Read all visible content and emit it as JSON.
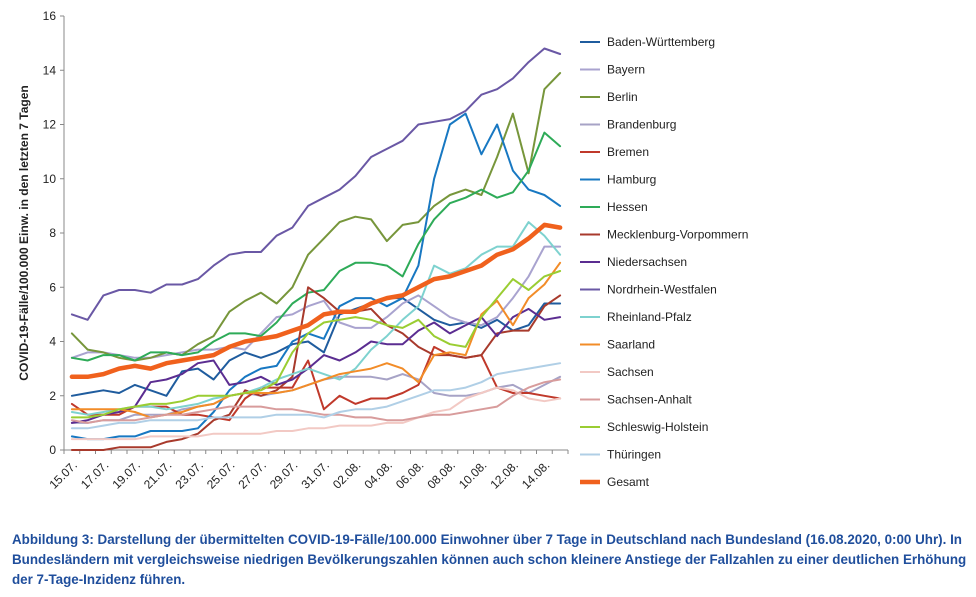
{
  "caption": "Abbildung 3: Darstellung der übermittelten COVID-19-Fälle/100.000 Einwohner über 7 Tage in Deutschland nach Bundesland (16.08.2020, 0:00 Uhr). In Bundesländern mit vergleichsweise niedrigen Bevölkerungszahlen können auch schon kleinere Anstiege der Fallzahlen zu einer deutlichen Erhöhung der 7-Tage-Inzidenz führen.",
  "chart_data": {
    "type": "line",
    "title": "",
    "xlabel": "",
    "ylabel": "COVID-19-Fälle/100.000 Einw. in den letzten 7 Tagen",
    "ylim": [
      0,
      16
    ],
    "yticks": [
      0,
      2,
      4,
      6,
      8,
      10,
      12,
      14,
      16
    ],
    "grid": false,
    "legend_position": "right",
    "x": [
      "15.07.",
      "16.07.",
      "17.07.",
      "18.07.",
      "19.07.",
      "20.07.",
      "21.07.",
      "22.07.",
      "23.07.",
      "24.07.",
      "25.07.",
      "26.07.",
      "27.07.",
      "28.07.",
      "29.07.",
      "30.07.",
      "31.07.",
      "01.08.",
      "02.08.",
      "03.08.",
      "04.08.",
      "05.08.",
      "06.08.",
      "07.08.",
      "08.08.",
      "09.08.",
      "10.08.",
      "11.08.",
      "12.08.",
      "13.08.",
      "14.08.",
      "15.08."
    ],
    "x_tick_labels": [
      "15.07.",
      "17.07.",
      "19.07.",
      "21.07.",
      "23.07.",
      "25.07.",
      "27.07.",
      "29.07.",
      "31.07.",
      "02.08.",
      "04.08.",
      "06.08.",
      "08.08.",
      "10.08.",
      "12.08.",
      "14.08."
    ],
    "series": [
      {
        "name": "Baden-Württemberg",
        "color": "#1f5c9e",
        "values": [
          2.0,
          2.1,
          2.2,
          2.1,
          2.4,
          2.2,
          2.0,
          2.9,
          3.0,
          2.6,
          3.3,
          3.6,
          3.4,
          3.6,
          3.9,
          4.0,
          3.6,
          5.0,
          5.2,
          5.4,
          5.6,
          5.6,
          5.2,
          4.8,
          4.6,
          4.7,
          4.5,
          4.8,
          4.4,
          4.6,
          5.4,
          5.4
        ]
      },
      {
        "name": "Bayern",
        "color": "#a9a3cf",
        "values": [
          3.4,
          3.6,
          3.6,
          3.5,
          3.4,
          3.4,
          3.5,
          3.6,
          3.7,
          3.7,
          3.8,
          3.7,
          4.3,
          4.9,
          5.0,
          5.3,
          5.5,
          4.7,
          4.5,
          4.5,
          4.9,
          5.4,
          5.7,
          5.3,
          4.9,
          4.7,
          4.6,
          4.9,
          5.6,
          6.4,
          7.5,
          7.5
        ]
      },
      {
        "name": "Berlin",
        "color": "#77963b",
        "values": [
          4.3,
          3.7,
          3.6,
          3.4,
          3.3,
          3.4,
          3.6,
          3.5,
          3.9,
          4.2,
          5.1,
          5.5,
          5.8,
          5.4,
          6.0,
          7.2,
          7.8,
          8.4,
          8.6,
          8.5,
          7.7,
          8.3,
          8.4,
          9.0,
          9.4,
          9.6,
          9.4,
          10.8,
          12.4,
          10.2,
          13.3,
          13.9
        ]
      },
      {
        "name": "Brandenburg",
        "color": "#a7a3c6",
        "values": [
          1.0,
          1.0,
          1.1,
          1.1,
          1.3,
          1.3,
          1.3,
          1.5,
          1.6,
          1.7,
          2.0,
          2.1,
          2.0,
          2.1,
          2.2,
          2.4,
          2.6,
          2.7,
          2.7,
          2.7,
          2.6,
          2.8,
          2.6,
          2.1,
          2.0,
          2.0,
          2.1,
          2.3,
          2.4,
          2.1,
          2.4,
          2.7
        ]
      },
      {
        "name": "Bremen",
        "color": "#c0392b",
        "values": [
          1.7,
          1.3,
          1.3,
          1.3,
          1.6,
          1.6,
          1.6,
          1.3,
          1.3,
          1.2,
          1.1,
          1.9,
          2.3,
          2.3,
          2.3,
          3.3,
          1.5,
          2.0,
          1.7,
          1.9,
          1.9,
          2.1,
          2.4,
          3.8,
          3.5,
          3.4,
          3.5,
          2.3,
          2.1,
          2.1,
          2.0,
          1.9
        ]
      },
      {
        "name": "Hamburg",
        "color": "#1878c2",
        "values": [
          0.5,
          0.4,
          0.4,
          0.5,
          0.5,
          0.7,
          0.7,
          0.7,
          0.8,
          1.4,
          2.2,
          2.7,
          3.0,
          3.1,
          4.0,
          4.3,
          4.1,
          5.3,
          5.6,
          5.6,
          5.3,
          5.6,
          6.8,
          10.0,
          12.0,
          12.4,
          10.9,
          12.0,
          10.3,
          9.6,
          9.4,
          9.0
        ]
      },
      {
        "name": "Hessen",
        "color": "#2eab58",
        "values": [
          3.4,
          3.3,
          3.5,
          3.5,
          3.3,
          3.6,
          3.6,
          3.5,
          3.6,
          4.0,
          4.3,
          4.3,
          4.2,
          4.7,
          5.4,
          5.8,
          5.9,
          6.6,
          6.9,
          6.9,
          6.8,
          6.4,
          7.6,
          8.5,
          9.1,
          9.3,
          9.6,
          9.3,
          9.5,
          10.3,
          11.7,
          11.2
        ]
      },
      {
        "name": "Mecklenburg-Vorpommern",
        "color": "#a83a2c",
        "values": [
          0.0,
          0.0,
          0.0,
          0.1,
          0.1,
          0.1,
          0.3,
          0.4,
          0.6,
          1.1,
          1.3,
          2.2,
          2.0,
          2.2,
          2.7,
          6.0,
          5.6,
          5.1,
          5.1,
          5.2,
          4.6,
          4.3,
          3.8,
          3.5,
          3.5,
          3.4,
          3.5,
          4.3,
          4.4,
          4.4,
          5.3,
          5.7
        ]
      },
      {
        "name": "Niedersachsen",
        "color": "#5b2d91",
        "values": [
          1.0,
          1.1,
          1.3,
          1.4,
          1.6,
          2.5,
          2.6,
          2.8,
          3.2,
          3.3,
          2.4,
          2.5,
          2.7,
          2.4,
          2.6,
          3.0,
          3.5,
          3.3,
          3.6,
          4.0,
          3.9,
          3.9,
          4.4,
          4.7,
          4.3,
          4.6,
          4.9,
          4.2,
          4.9,
          5.2,
          4.8,
          4.9
        ]
      },
      {
        "name": "Nordrhein-Westfalen",
        "color": "#6a58a5",
        "values": [
          5.0,
          4.8,
          5.7,
          5.9,
          5.9,
          5.8,
          6.1,
          6.1,
          6.3,
          6.8,
          7.2,
          7.3,
          7.3,
          7.9,
          8.2,
          9.0,
          9.3,
          9.6,
          10.1,
          10.8,
          11.1,
          11.4,
          12.0,
          12.1,
          12.2,
          12.5,
          13.1,
          13.3,
          13.7,
          14.3,
          14.8,
          14.6
        ]
      },
      {
        "name": "Rheinland-Pfalz",
        "color": "#7ed2cf",
        "values": [
          1.4,
          1.3,
          1.4,
          1.5,
          1.6,
          1.6,
          1.5,
          1.6,
          1.7,
          1.9,
          2.0,
          2.1,
          2.3,
          2.6,
          2.8,
          3.0,
          2.8,
          2.6,
          3.0,
          3.7,
          4.2,
          4.8,
          5.3,
          6.8,
          6.5,
          6.7,
          7.2,
          7.5,
          7.5,
          8.4,
          7.9,
          7.2
        ]
      },
      {
        "name": "Saarland",
        "color": "#f28c28",
        "values": [
          1.5,
          1.5,
          1.5,
          1.5,
          1.4,
          1.2,
          1.3,
          1.4,
          1.6,
          1.7,
          2.0,
          2.1,
          2.1,
          2.1,
          2.2,
          2.4,
          2.6,
          2.8,
          2.9,
          3.0,
          3.2,
          3.0,
          2.5,
          3.5,
          3.6,
          3.5,
          5.0,
          5.5,
          4.6,
          5.6,
          6.1,
          6.9
        ]
      },
      {
        "name": "Sachsen",
        "color": "#f2c9c4",
        "values": [
          0.4,
          0.4,
          0.4,
          0.4,
          0.4,
          0.5,
          0.5,
          0.5,
          0.5,
          0.6,
          0.6,
          0.6,
          0.6,
          0.7,
          0.7,
          0.8,
          0.8,
          0.9,
          0.9,
          0.9,
          1.0,
          1.0,
          1.2,
          1.4,
          1.5,
          1.9,
          2.1,
          2.3,
          2.2,
          1.9,
          1.8,
          1.9
        ]
      },
      {
        "name": "Sachsen-Anhalt",
        "color": "#d89c9c",
        "values": [
          1.1,
          1.0,
          1.1,
          1.1,
          1.1,
          1.2,
          1.3,
          1.3,
          1.4,
          1.5,
          1.6,
          1.6,
          1.6,
          1.5,
          1.5,
          1.4,
          1.3,
          1.3,
          1.2,
          1.2,
          1.1,
          1.1,
          1.2,
          1.3,
          1.3,
          1.4,
          1.5,
          1.6,
          2.0,
          2.3,
          2.5,
          2.6
        ]
      },
      {
        "name": "Schleswig-Holstein",
        "color": "#9acd32",
        "values": [
          1.2,
          1.2,
          1.3,
          1.5,
          1.6,
          1.7,
          1.7,
          1.8,
          2.0,
          2.0,
          2.0,
          2.1,
          2.2,
          2.5,
          3.6,
          4.3,
          4.7,
          4.8,
          4.9,
          4.8,
          4.6,
          4.5,
          4.8,
          4.2,
          3.9,
          3.8,
          4.9,
          5.6,
          6.3,
          5.9,
          6.4,
          6.6
        ]
      },
      {
        "name": "Thüringen",
        "color": "#b0cfe6",
        "values": [
          0.8,
          0.8,
          0.9,
          1.0,
          1.0,
          1.1,
          1.1,
          1.1,
          1.1,
          1.2,
          1.2,
          1.2,
          1.2,
          1.3,
          1.3,
          1.3,
          1.2,
          1.4,
          1.5,
          1.5,
          1.6,
          1.8,
          2.0,
          2.2,
          2.2,
          2.3,
          2.5,
          2.8,
          2.9,
          3.0,
          3.1,
          3.2
        ]
      },
      {
        "name": "Gesamt",
        "color": "#f0611d",
        "bold": true,
        "values": [
          2.7,
          2.7,
          2.8,
          3.0,
          3.1,
          3.0,
          3.2,
          3.3,
          3.4,
          3.5,
          3.8,
          4.0,
          4.1,
          4.2,
          4.4,
          4.6,
          5.0,
          5.1,
          5.1,
          5.4,
          5.6,
          5.7,
          6.0,
          6.3,
          6.4,
          6.6,
          6.8,
          7.2,
          7.4,
          7.8,
          8.3,
          8.2
        ]
      }
    ]
  }
}
